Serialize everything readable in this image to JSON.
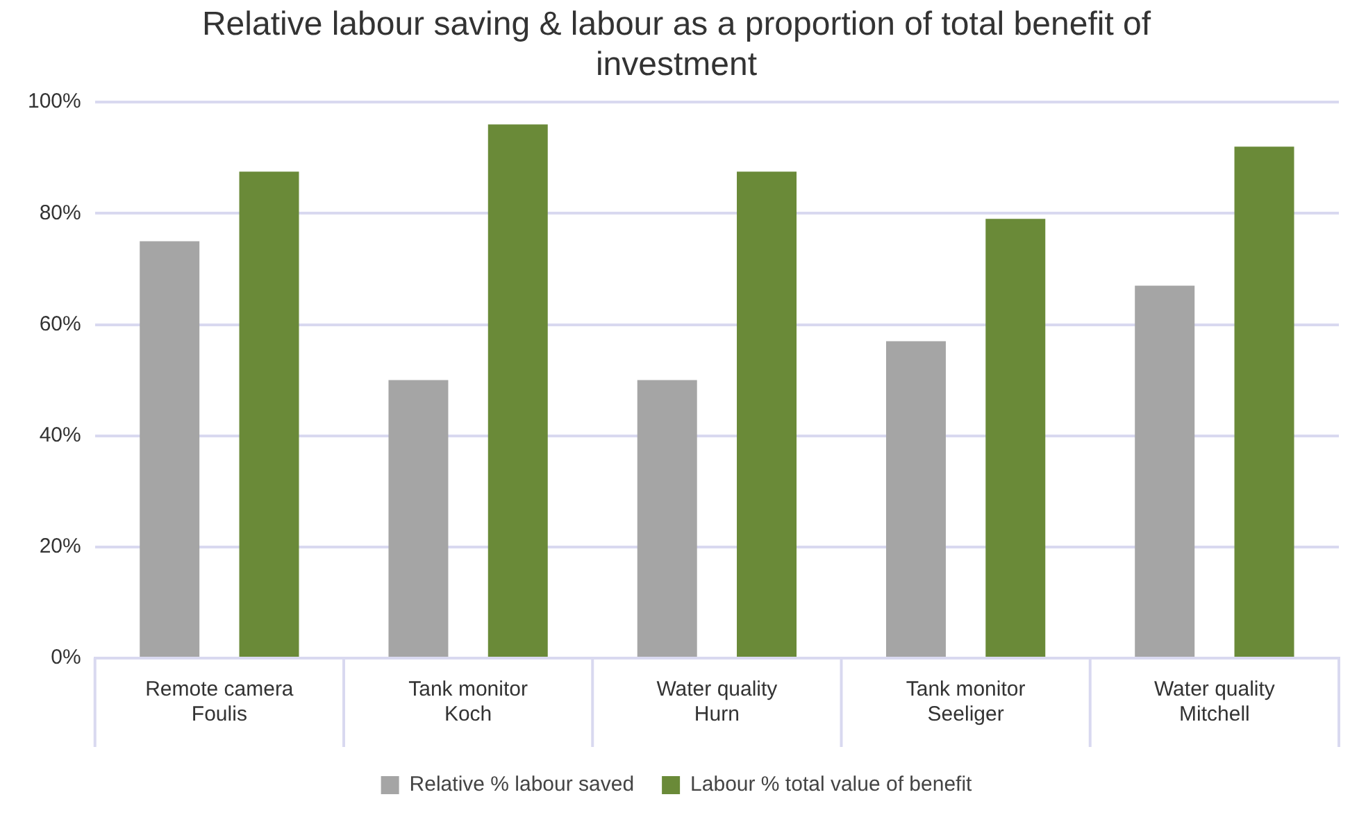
{
  "chart_data": {
    "type": "bar",
    "title": "Relative labour saving & labour as a proportion of total benefit of investment",
    "categories": [
      "Remote camera\nFoulis",
      "Tank monitor\nKoch",
      "Water quality\nHurn",
      "Tank monitor\nSeeliger",
      "Water quality\nMitchell"
    ],
    "series": [
      {
        "name": "Relative % labour saved",
        "color": "#a5a5a5",
        "values": [
          75,
          50,
          50,
          57,
          67
        ]
      },
      {
        "name": "Labour % total value of benefit",
        "color": "#6a8a38",
        "values": [
          87.5,
          96,
          87.5,
          79,
          92
        ]
      }
    ],
    "ylim": [
      0,
      100
    ],
    "yticks": [
      {
        "value": 0,
        "label": "0%"
      },
      {
        "value": 20,
        "label": "20%"
      },
      {
        "value": 40,
        "label": "40%"
      },
      {
        "value": 60,
        "label": "60%"
      },
      {
        "value": 80,
        "label": "80%"
      },
      {
        "value": 100,
        "label": "100%"
      }
    ],
    "grid": "y",
    "legend": "bottom"
  }
}
